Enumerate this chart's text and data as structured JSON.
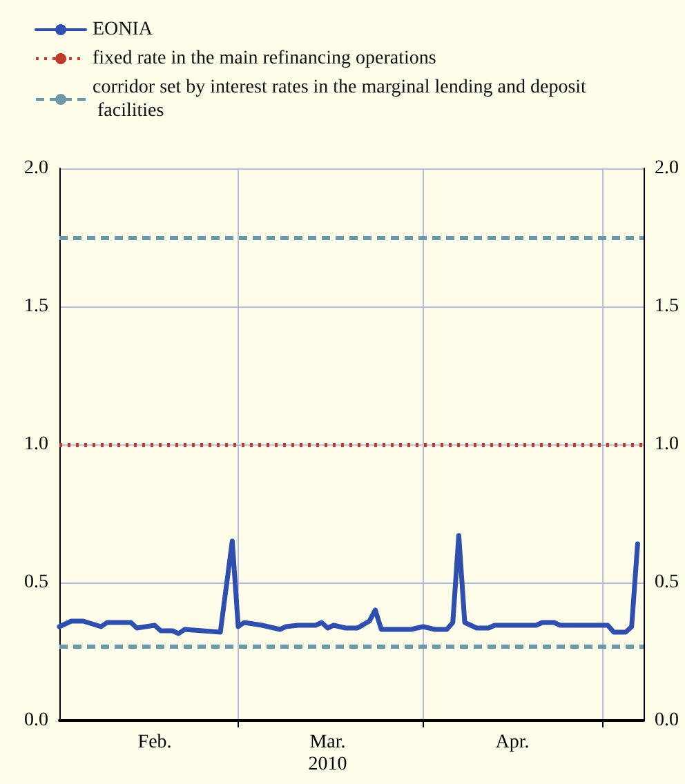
{
  "chart_data": {
    "type": "line",
    "x": [
      "2010-01-30",
      "2010-02-01",
      "2010-02-03",
      "2010-02-06",
      "2010-02-07",
      "2010-02-11",
      "2010-02-12",
      "2010-02-15",
      "2010-02-16",
      "2010-02-18",
      "2010-02-19",
      "2010-02-20",
      "2010-02-26",
      "2010-02-28",
      "2010-03-01",
      "2010-03-02",
      "2010-03-05",
      "2010-03-08",
      "2010-03-09",
      "2010-03-11",
      "2010-03-14",
      "2010-03-15",
      "2010-03-16",
      "2010-03-17",
      "2010-03-19",
      "2010-03-21",
      "2010-03-23",
      "2010-03-24",
      "2010-03-25",
      "2010-03-30",
      "2010-04-01",
      "2010-04-03",
      "2010-04-05",
      "2010-04-06",
      "2010-04-07",
      "2010-04-08",
      "2010-04-10",
      "2010-04-12",
      "2010-04-13",
      "2010-04-20",
      "2010-04-21",
      "2010-04-23",
      "2010-04-24",
      "2010-05-02",
      "2010-05-03",
      "2010-05-05",
      "2010-05-06",
      "2010-05-07"
    ],
    "series": [
      {
        "name": "EONIA",
        "color": "#2e4fae",
        "values": [
          0.34,
          0.36,
          0.36,
          0.34,
          0.355,
          0.355,
          0.335,
          0.345,
          0.325,
          0.325,
          0.315,
          0.33,
          0.32,
          0.65,
          0.34,
          0.355,
          0.345,
          0.33,
          0.34,
          0.345,
          0.345,
          0.355,
          0.335,
          0.345,
          0.335,
          0.335,
          0.36,
          0.4,
          0.33,
          0.33,
          0.34,
          0.33,
          0.33,
          0.355,
          0.67,
          0.355,
          0.335,
          0.335,
          0.345,
          0.345,
          0.355,
          0.355,
          0.345,
          0.345,
          0.32,
          0.32,
          0.34,
          0.64
        ]
      }
    ],
    "ref_lines": [
      {
        "axis": "y",
        "value": 1.0,
        "label": "fixed rate in the main refinancing operations",
        "color": "#c0392b",
        "line_style": "dotted"
      },
      {
        "axis": "y",
        "value": 1.75,
        "label": "corridor set by interest rates in the marginal lending and deposit facilities",
        "color": "#6a98aa",
        "line_style": "dashed"
      },
      {
        "axis": "y",
        "value": 0.27,
        "color": "#6a98aa"
      }
    ],
    "xlim": [
      "2010-01-30",
      "2010-05-08"
    ],
    "xticks": [
      {
        "value": "2010-03-01",
        "label": null
      },
      {
        "value": "2010-04-01",
        "label": null
      },
      {
        "value": "2010-05-01",
        "label": null
      },
      {
        "value": "2010-02-15",
        "label": "Feb."
      },
      {
        "value": "2010-03-16",
        "label": "Mar.\n2010"
      },
      {
        "value": "2010-04-16",
        "label": "Apr."
      }
    ],
    "ylim": [
      0,
      2
    ],
    "yticks": [
      {
        "value": 0,
        "label": "0.0"
      },
      {
        "value": 0.5,
        "label": "0.5"
      },
      {
        "value": 1,
        "label": "1.0"
      },
      {
        "value": 1.5,
        "label": "1.5"
      },
      {
        "value": 2,
        "label": "2.0"
      }
    ],
    "y2lim": [
      0,
      2
    ],
    "y2ticks": [
      {
        "value": 0,
        "label": "0.0"
      },
      {
        "value": 0.5,
        "label": "0.5"
      },
      {
        "value": 1,
        "label": "1.0"
      },
      {
        "value": 1.5,
        "label": "1.5"
      },
      {
        "value": 2,
        "label": "2.0"
      }
    ],
    "grid": true,
    "legend": "top left",
    "marker": "none",
    "line_style": "solid"
  }
}
